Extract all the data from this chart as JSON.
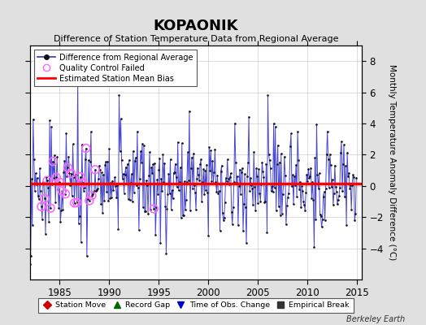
{
  "title": "KOPAONIK",
  "subtitle": "Difference of Station Temperature Data from Regional Average",
  "ylabel": "Monthly Temperature Anomaly Difference (°C)",
  "xlim": [
    1982.0,
    2015.5
  ],
  "ylim": [
    -6.0,
    9.0
  ],
  "yticks_right": [
    -4,
    -2,
    0,
    2,
    4,
    6,
    8
  ],
  "xticks": [
    1985,
    1990,
    1995,
    2000,
    2005,
    2010,
    2015
  ],
  "bias_value": 0.15,
  "background_color": "#e0e0e0",
  "plot_bg_color": "#ffffff",
  "line_color": "#3333cc",
  "dot_color": "#111111",
  "bias_color": "#ff0000",
  "qc_color": "#ff66ff",
  "watermark": "Berkeley Earth",
  "legend1_items": [
    {
      "label": "Difference from Regional Average"
    },
    {
      "label": "Quality Control Failed"
    },
    {
      "label": "Estimated Station Mean Bias"
    }
  ],
  "legend2_items": [
    {
      "label": "Station Move",
      "color": "#cc0000",
      "marker": "D"
    },
    {
      "label": "Record Gap",
      "color": "#006600",
      "marker": "^"
    },
    {
      "label": "Time of Obs. Change",
      "color": "#0000cc",
      "marker": "v"
    },
    {
      "label": "Empirical Break",
      "color": "#333333",
      "marker": "s"
    }
  ]
}
